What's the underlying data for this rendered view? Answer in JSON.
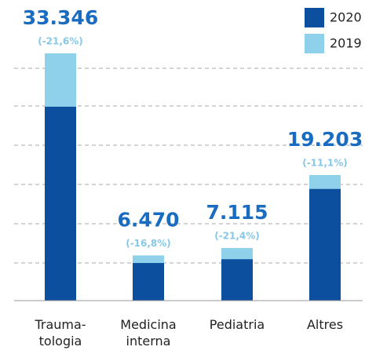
{
  "chart_data": {
    "type": "bar",
    "categories": [
      "Trauma-\ntologia",
      "Medicina\ninterna",
      "Pediatria",
      "Altres"
    ],
    "series": [
      {
        "name": "2020",
        "color": "#0b4f9e",
        "values": [
          33346,
          6470,
          7115,
          19203
        ],
        "value_labels": [
          "33.346",
          "6.470",
          "7.115",
          "19.203"
        ]
      },
      {
        "name": "2019",
        "color": "#8fd0ea",
        "values": [
          42533,
          7776,
          9052,
          21601
        ]
      }
    ],
    "changes": [
      "(-21,6%)",
      "(-16,8%)",
      "(-21,4%)",
      "(-11,1%)"
    ],
    "ylim": [
      0,
      49000
    ],
    "grid": true
  }
}
